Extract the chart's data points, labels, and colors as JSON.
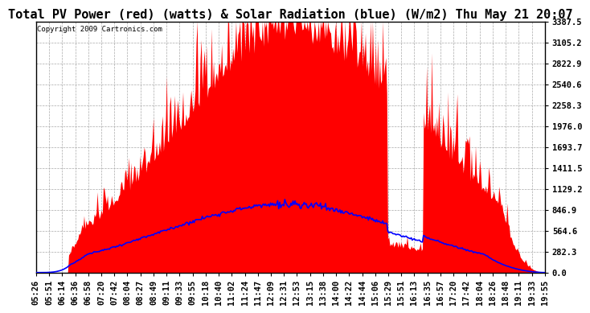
{
  "title": "Total PV Power (red) (watts) & Solar Radiation (blue) (W/m2) Thu May 21 20:07",
  "copyright": "Copyright 2009 Cartronics.com",
  "ymax": 3387.5,
  "yticks": [
    0.0,
    282.3,
    564.6,
    846.9,
    1129.2,
    1411.5,
    1693.7,
    1976.0,
    2258.3,
    2540.6,
    2822.9,
    3105.2,
    3387.5
  ],
  "xtick_labels": [
    "05:26",
    "05:51",
    "06:14",
    "06:36",
    "06:58",
    "07:20",
    "07:42",
    "08:04",
    "08:27",
    "08:49",
    "09:11",
    "09:33",
    "09:55",
    "10:18",
    "10:40",
    "11:02",
    "11:24",
    "11:47",
    "12:09",
    "12:31",
    "12:53",
    "13:15",
    "13:38",
    "14:00",
    "14:22",
    "14:44",
    "15:06",
    "15:29",
    "15:51",
    "16:13",
    "16:35",
    "16:57",
    "17:20",
    "17:42",
    "18:04",
    "18:26",
    "18:48",
    "19:11",
    "19:33",
    "19:55"
  ],
  "bg_color": "#ffffff",
  "plot_bg_color": "#ffffff",
  "grid_color": "#aaaaaa",
  "pv_color": "#ff0000",
  "solar_color": "#0000ff",
  "title_fontsize": 11,
  "tick_fontsize": 7.5,
  "copyright_fontsize": 6.5
}
